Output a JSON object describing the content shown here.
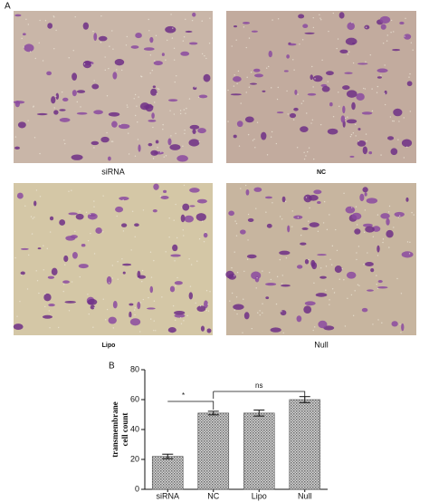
{
  "figure": {
    "panel_a_label": "A",
    "panel_b_label": "B",
    "images": [
      {
        "label": "siRNA"
      },
      {
        "label": "NC"
      },
      {
        "label": "Lipo"
      },
      {
        "label": "Null"
      }
    ]
  },
  "chart_data": {
    "type": "bar",
    "categories": [
      "siRNA",
      "NC",
      "Lipo",
      "Null"
    ],
    "values": [
      22,
      51,
      51,
      60
    ],
    "errors": [
      1.5,
      1.2,
      2,
      2
    ],
    "color": "#9a9a9a",
    "ylabel": [
      "transmembrane",
      "cell count"
    ],
    "ylim": [
      0,
      80
    ],
    "yticks": [
      0,
      20,
      40,
      60,
      80
    ],
    "annotations": [
      {
        "text": "*"
      },
      {
        "text": "ns"
      }
    ]
  }
}
